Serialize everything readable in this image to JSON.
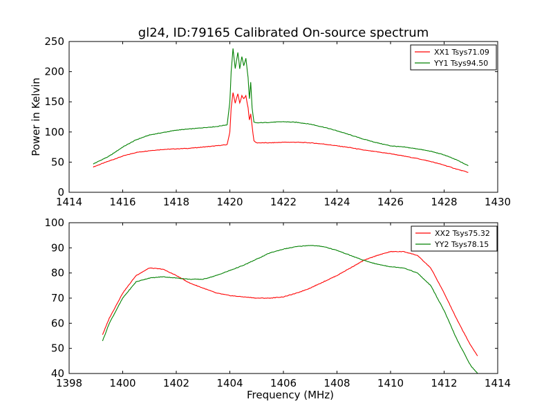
{
  "figure": {
    "title": "gl24, ID:79165 Calibrated On-source spectrum"
  },
  "chart_data": [
    {
      "type": "line",
      "title": "gl24, ID:79165 Calibrated On-source spectrum",
      "xlabel": "",
      "ylabel": "Power in Kelvin",
      "xlim": [
        1414,
        1430
      ],
      "ylim": [
        0,
        250
      ],
      "xticks": [
        1414,
        1416,
        1418,
        1420,
        1422,
        1424,
        1426,
        1428,
        1430
      ],
      "yticks": [
        0,
        50,
        100,
        150,
        200,
        250
      ],
      "grid": false,
      "legend": "top-right",
      "series": [
        {
          "name": "XX1 Tsys71.09",
          "color": "#ff0000",
          "x": [
            1414.9,
            1415.5,
            1416.0,
            1416.5,
            1417.0,
            1417.5,
            1418.0,
            1418.5,
            1419.0,
            1419.5,
            1419.9,
            1420.0,
            1420.05,
            1420.12,
            1420.2,
            1420.3,
            1420.37,
            1420.45,
            1420.52,
            1420.6,
            1420.68,
            1420.73,
            1420.78,
            1420.83,
            1420.9,
            1421.0,
            1421.5,
            1422.0,
            1422.5,
            1423.0,
            1423.5,
            1424.0,
            1424.5,
            1425.0,
            1425.5,
            1426.0,
            1426.5,
            1427.0,
            1427.5,
            1428.0,
            1428.5,
            1428.9
          ],
          "y": [
            42,
            52,
            60,
            66,
            69,
            71,
            72,
            73,
            75,
            77,
            79,
            100,
            140,
            165,
            148,
            163,
            148,
            160,
            155,
            160,
            140,
            120,
            130,
            110,
            85,
            82,
            82,
            83,
            83,
            82,
            80,
            77,
            74,
            70,
            67,
            64,
            60,
            56,
            51,
            45,
            38,
            33
          ]
        },
        {
          "name": "YY1 Tsys94.50",
          "color": "#008000",
          "x": [
            1414.9,
            1415.5,
            1416.0,
            1416.5,
            1417.0,
            1417.5,
            1418.0,
            1418.5,
            1419.0,
            1419.5,
            1419.9,
            1420.0,
            1420.05,
            1420.12,
            1420.2,
            1420.3,
            1420.37,
            1420.45,
            1420.52,
            1420.6,
            1420.68,
            1420.73,
            1420.78,
            1420.83,
            1420.9,
            1421.0,
            1421.5,
            1422.0,
            1422.5,
            1423.0,
            1423.5,
            1424.0,
            1424.5,
            1425.0,
            1425.5,
            1426.0,
            1426.5,
            1427.0,
            1427.5,
            1428.0,
            1428.5,
            1428.9
          ],
          "y": [
            47,
            60,
            75,
            87,
            95,
            99,
            103,
            105,
            107,
            109,
            112,
            150,
            200,
            238,
            205,
            232,
            205,
            225,
            210,
            222,
            190,
            155,
            183,
            140,
            116,
            115,
            116,
            117,
            116,
            113,
            108,
            102,
            95,
            88,
            82,
            77,
            75,
            72,
            68,
            62,
            53,
            44
          ]
        }
      ]
    },
    {
      "type": "line",
      "title": "",
      "xlabel": "Frequency (MHz)",
      "ylabel": "",
      "xlim": [
        1398,
        1414
      ],
      "ylim": [
        40,
        100
      ],
      "xticks": [
        1398,
        1400,
        1402,
        1404,
        1406,
        1408,
        1410,
        1412,
        1414
      ],
      "yticks": [
        40,
        50,
        60,
        70,
        80,
        90,
        100
      ],
      "grid": false,
      "legend": "top-right",
      "series": [
        {
          "name": "XX2 Tsys75.32",
          "color": "#ff0000",
          "x": [
            1399.25,
            1399.5,
            1400.0,
            1400.5,
            1401.0,
            1401.5,
            1402.0,
            1402.5,
            1403.0,
            1403.5,
            1404.0,
            1404.5,
            1405.0,
            1405.5,
            1406.0,
            1406.5,
            1407.0,
            1407.5,
            1408.0,
            1408.5,
            1409.0,
            1409.5,
            1410.0,
            1410.5,
            1411.0,
            1411.5,
            1412.0,
            1412.5,
            1413.0,
            1413.25
          ],
          "y": [
            55.5,
            62,
            72,
            79,
            82,
            81.5,
            79,
            76,
            74,
            72,
            71,
            70.5,
            70,
            70,
            70.5,
            72,
            74,
            76.5,
            79,
            82,
            85,
            87,
            88.5,
            88.5,
            87,
            82,
            72,
            61,
            51,
            47
          ]
        },
        {
          "name": "YY2 Tsys78.15",
          "color": "#008000",
          "x": [
            1399.25,
            1399.5,
            1400.0,
            1400.5,
            1401.0,
            1401.5,
            1402.0,
            1402.5,
            1403.0,
            1403.5,
            1404.0,
            1404.5,
            1405.0,
            1405.5,
            1406.0,
            1406.5,
            1407.0,
            1407.5,
            1408.0,
            1408.5,
            1409.0,
            1409.5,
            1410.0,
            1410.5,
            1411.0,
            1411.5,
            1412.0,
            1412.5,
            1413.0,
            1413.25
          ],
          "y": [
            53,
            60,
            70,
            76.5,
            78,
            78.5,
            78,
            77.5,
            77.5,
            79,
            81,
            83,
            85.5,
            88,
            89.5,
            90.5,
            91,
            90.5,
            89,
            87,
            85,
            83.5,
            82.5,
            82,
            80,
            75,
            65,
            53,
            43,
            40
          ]
        }
      ]
    }
  ]
}
